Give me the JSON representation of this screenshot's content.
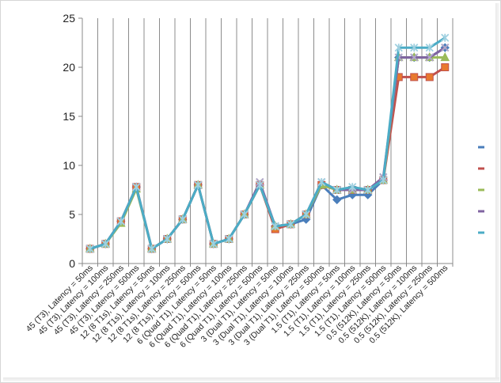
{
  "chart_data": {
    "type": "line",
    "title": "",
    "xlabel": "",
    "ylabel": "",
    "ylim": [
      0,
      25
    ],
    "yticks": [
      0,
      5,
      10,
      15,
      20,
      25
    ],
    "grid": {
      "horizontal": false,
      "vertical": true
    },
    "legend": "right",
    "categories": [
      "45 (T3), Latency = 50ms",
      "45 (T3), Latency = 100ms",
      "45 (T3), Latency = 250ms",
      "45 (T3), Latency = 500ms",
      "12 (8 T1s), Latency = 50ms",
      "12 (8 T1s), Latency = 100ms",
      "12 (8 T1s), Latency = 250ms",
      "12 (8 T1s), Latency = 500ms",
      "6 (Quad T1), Latency = 50ms",
      "6 (Quad T1), Latency = 100ms",
      "6 (Quad T1), Latency = 250ms",
      "6 (Quad T1), Latency = 500ms",
      "3 (Dual T1), Latency = 50ms",
      "3 (Dual T1), Latency = 100ms",
      "3 (Dual T1), Latency = 250ms",
      "3 (Dual T1), Latency = 500ms",
      "1.5 (T1), Latency = 50ms",
      "1.5 (T1), Latency = 100ms",
      "1.5 (T1), Latency = 250ms",
      "1.5 (T1), Latency = 500ms",
      "0.5 (512K), Latency = 50ms",
      "0.5 (512K), Latency = 100ms",
      "0.5 (512K), Latency = 250ms",
      "0.5 (512K), Latency = 500ms"
    ],
    "series": [
      {
        "color": "#4a7ebb",
        "marker": "diamond",
        "values": [
          1.5,
          2,
          4.3,
          7.8,
          1.5,
          2.5,
          4.5,
          8,
          2,
          2.5,
          5,
          8,
          3.8,
          4,
          4.5,
          8,
          6.5,
          7,
          7,
          8.5,
          21,
          21,
          21,
          22
        ]
      },
      {
        "color": "#c0504d",
        "marker": "square",
        "values": [
          1.5,
          2,
          4.3,
          7.8,
          1.5,
          2.5,
          4.5,
          8,
          2,
          2.5,
          5,
          8,
          3.5,
          4,
          5,
          8,
          7.5,
          7.5,
          7.5,
          8.5,
          19,
          19,
          19,
          20
        ]
      },
      {
        "color": "#9bbb59",
        "marker": "triangle",
        "values": [
          1.5,
          2,
          4.1,
          7.6,
          1.5,
          2.5,
          4.5,
          8,
          2,
          2.5,
          5,
          8,
          3.8,
          4,
          5,
          8,
          7.5,
          7.5,
          7.5,
          8.5,
          21,
          21,
          21,
          21
        ]
      },
      {
        "color": "#8064a2",
        "marker": "x",
        "values": [
          1.5,
          2,
          4.3,
          7.8,
          1.5,
          2.5,
          4.5,
          8,
          2,
          2.5,
          5,
          8.3,
          3.8,
          4,
          5,
          8.3,
          7.5,
          7.5,
          7.5,
          8.8,
          21,
          21,
          21,
          22
        ]
      },
      {
        "color": "#4bacc6",
        "marker": "star",
        "values": [
          1.5,
          2,
          4.3,
          7.8,
          1.5,
          2.5,
          4.5,
          8,
          2,
          2.5,
          5,
          8,
          3.8,
          4,
          5,
          8.3,
          7.5,
          7.8,
          7.5,
          8.5,
          22,
          22,
          22,
          23
        ]
      }
    ]
  }
}
